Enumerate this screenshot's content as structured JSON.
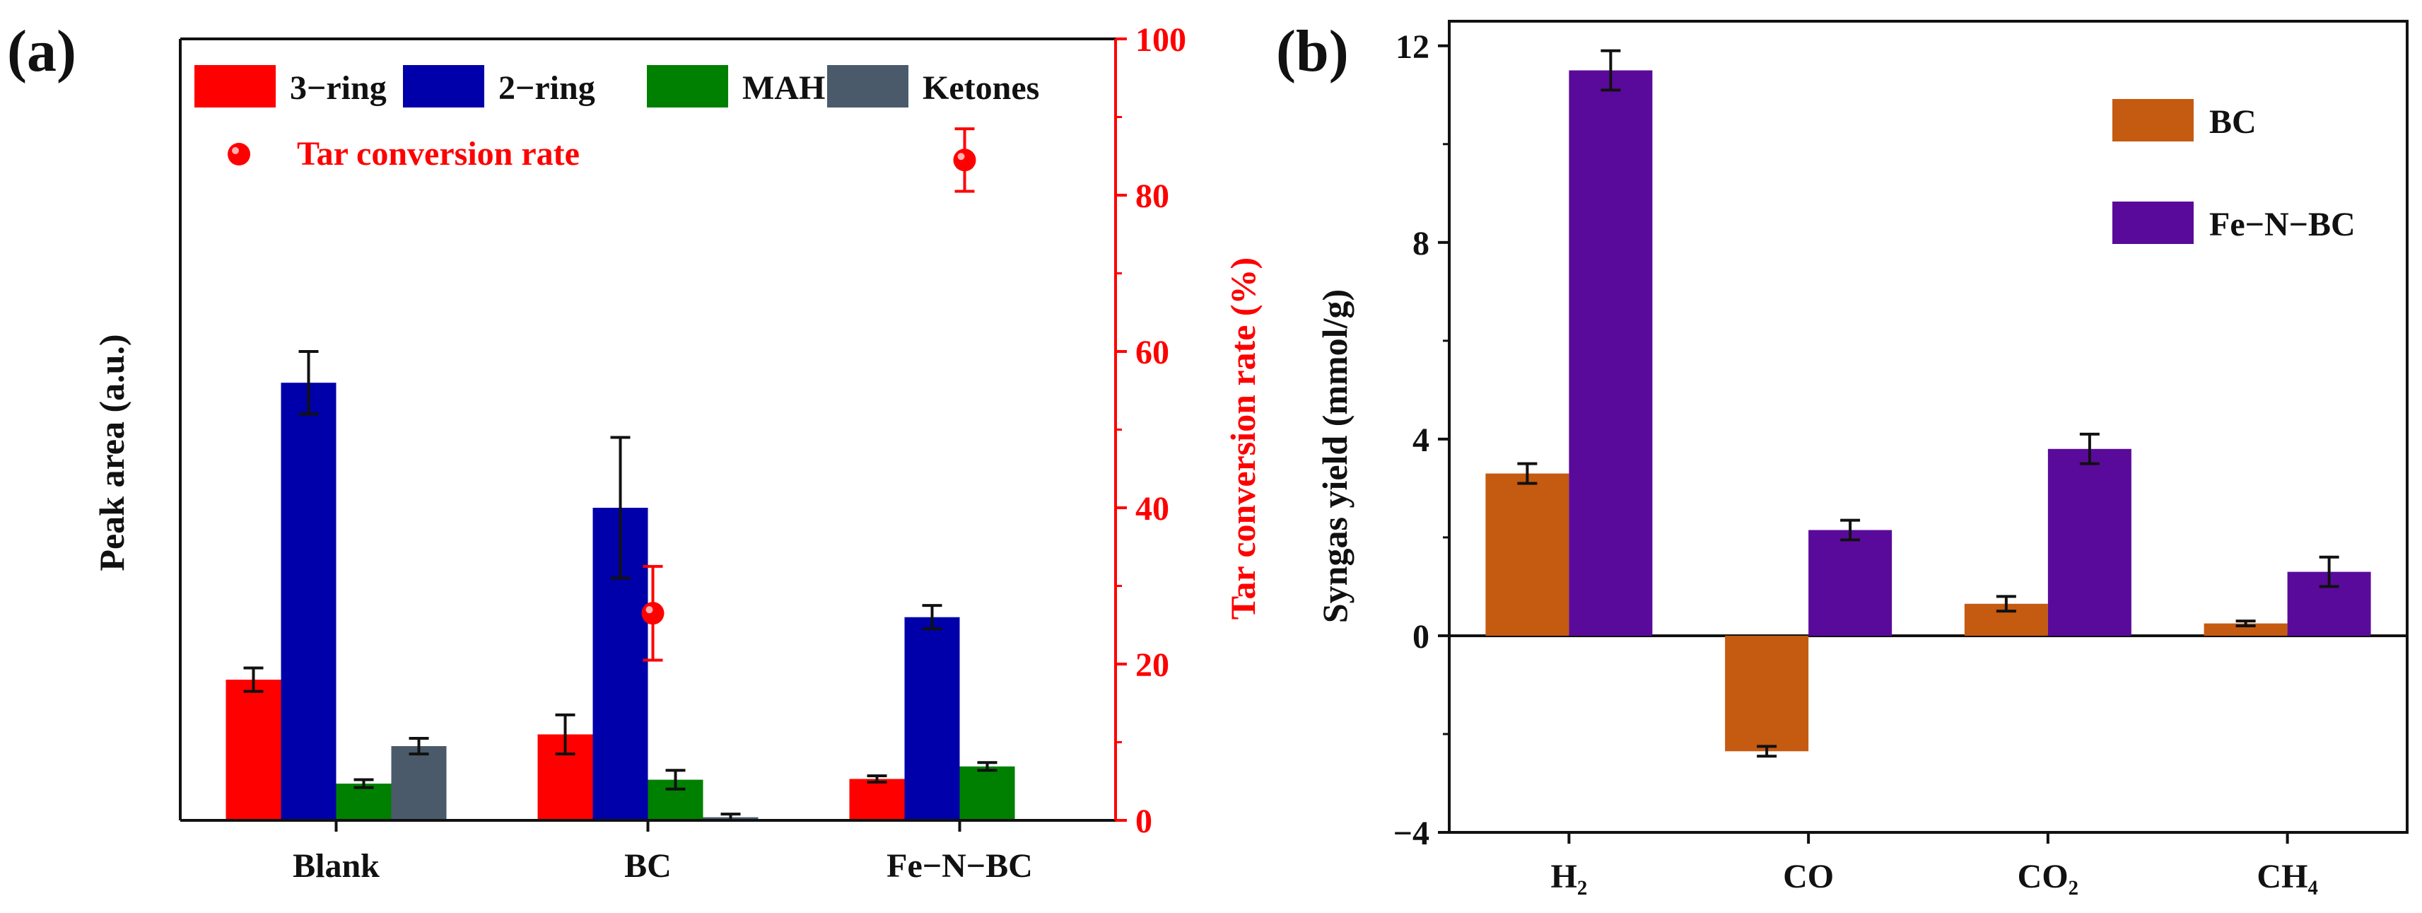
{
  "chart_data": [
    {
      "panel_label": "(a)",
      "type": "bar",
      "categories": [
        "Blank",
        "BC",
        "Fe−N−BC"
      ],
      "ylabel": "Peak area (a.u.)",
      "ylim": [
        0,
        100
      ],
      "series": [
        {
          "name": "3−ring",
          "color": "#ff0000",
          "values": [
            18,
            11,
            5.3
          ],
          "errors": [
            1.5,
            2.5,
            0.4
          ]
        },
        {
          "name": "2−ring",
          "color": "#0000aa",
          "values": [
            56,
            40,
            26
          ],
          "errors": [
            4,
            9,
            1.5
          ]
        },
        {
          "name": "MAH",
          "color": "#008000",
          "values": [
            4.7,
            5.2,
            6.9
          ],
          "errors": [
            0.5,
            1.2,
            0.5
          ]
        },
        {
          "name": "Ketones",
          "color": "#4a5a6a",
          "values": [
            9.5,
            0.4,
            null
          ],
          "errors": [
            1,
            0.4,
            0
          ]
        }
      ],
      "secondary": {
        "name": "Tar conversion rate",
        "color": "#ff0000",
        "ylabel": "Tar conversion rate (%)",
        "ylim": [
          0,
          100
        ],
        "yticks": [
          0,
          20,
          40,
          60,
          80,
          100
        ],
        "values": [
          null,
          26.5,
          84.5
        ],
        "errors": [
          0,
          6,
          4
        ]
      }
    },
    {
      "panel_label": "(b)",
      "type": "bar",
      "categories": [
        "H₂",
        "CO",
        "CO₂",
        "CH₄"
      ],
      "ylabel": "Syngas yield (mmol/g)",
      "ylim": [
        -4,
        12.5
      ],
      "yticks": [
        -4,
        0,
        4,
        8,
        12
      ],
      "series": [
        {
          "name": "BC",
          "color": "#c55a11",
          "values": [
            3.3,
            -2.35,
            0.65,
            0.25
          ],
          "errors": [
            0.2,
            0.1,
            0.15,
            0.05
          ]
        },
        {
          "name": "Fe−N−BC",
          "color": "#5a0a9a",
          "values": [
            11.5,
            2.15,
            3.8,
            1.3
          ],
          "errors": [
            0.4,
            0.2,
            0.3,
            0.3
          ]
        }
      ]
    }
  ]
}
